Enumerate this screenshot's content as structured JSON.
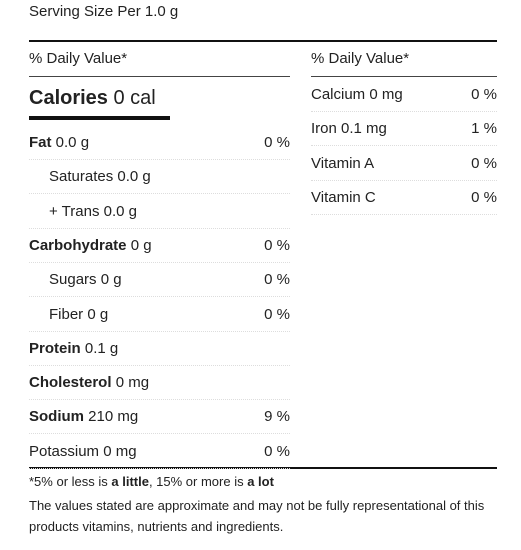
{
  "serving_size": "Serving Size Per 1.0 g",
  "left": {
    "header": "% Daily Value*",
    "calories": {
      "label": "Calories",
      "value": "0 cal"
    },
    "rows": [
      {
        "name": "Fat",
        "amount": "0.0 g",
        "percent": "0 %",
        "bold": true
      },
      {
        "name": "Saturates",
        "amount": "0.0 g",
        "indent": true
      },
      {
        "name": "+ Trans",
        "amount": "0.0 g",
        "indent": true
      },
      {
        "name": "Carbohydrate",
        "amount": "0 g",
        "percent": "0 %",
        "bold": true
      },
      {
        "name": "Sugars",
        "amount": "0 g",
        "percent": "0 %",
        "indent": true
      },
      {
        "name": "Fiber",
        "amount": "0 g",
        "percent": "0 %",
        "indent": true
      },
      {
        "name": "Protein",
        "amount": "0.1 g",
        "bold": true
      },
      {
        "name": "Cholesterol",
        "amount": "0 mg",
        "bold": true
      },
      {
        "name": "Sodium",
        "amount": "210 mg",
        "percent": "9 %",
        "bold": true
      },
      {
        "name": "Potassium",
        "amount": "0 mg",
        "percent": "0 %"
      }
    ]
  },
  "right": {
    "header": "% Daily Value*",
    "rows": [
      {
        "name": "Calcium",
        "amount": "0 mg",
        "percent": "0 %"
      },
      {
        "name": "Iron",
        "amount": "0.1 mg",
        "percent": "1 %"
      },
      {
        "name": "Vitamin A",
        "percent": "0 %"
      },
      {
        "name": "Vitamin C",
        "percent": "0 %"
      }
    ]
  },
  "footnote": [
    "*5% or less is ",
    "a little",
    ", 15% or more is ",
    "a lot"
  ],
  "disclaimer": "The values stated are approximate and may not be fully representational of this products vitamins, nutrients and ingredients."
}
